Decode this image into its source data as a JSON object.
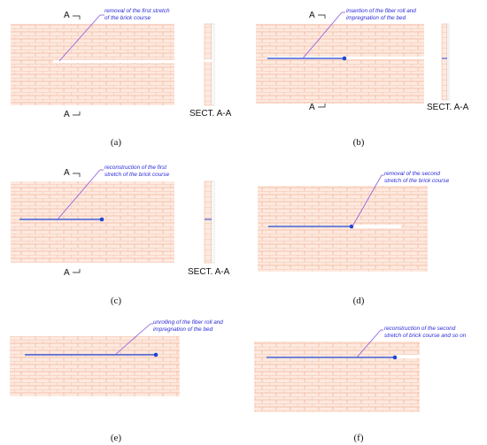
{
  "panels": [
    {
      "id": "a",
      "caption": "(a)",
      "note_lines": [
        "removal of the first stretch",
        "of the brick course"
      ],
      "has_fiber": false,
      "section_mark_top": "A",
      "section_mark_bottom": "A",
      "section_label": "SECT. A-A"
    },
    {
      "id": "b",
      "caption": "(b)",
      "note_lines": [
        "insertion of the fiber roll and",
        "impregnation of the bed"
      ],
      "has_fiber": true,
      "section_mark_top": "A",
      "section_mark_bottom": "A",
      "section_label": "SECT. A-A"
    },
    {
      "id": "c",
      "caption": "(c)",
      "note_lines": [
        "reconstruction of the first",
        "stretch of the brick course"
      ],
      "has_fiber": true,
      "section_mark_top": "A",
      "section_mark_bottom": "A",
      "section_label": "SECT. A-A"
    },
    {
      "id": "d",
      "caption": "(d)",
      "note_lines": [
        "removal of the second",
        "stretch of the brick course"
      ],
      "has_fiber": true
    },
    {
      "id": "e",
      "caption": "(e)",
      "note_lines": [
        "unrolling of the fiber roll and",
        "impregnation of the bed"
      ],
      "has_fiber": true
    },
    {
      "id": "f",
      "caption": "(f)",
      "note_lines": [
        "reconstruction of the second",
        "stretch of brick course and so on"
      ],
      "has_fiber": true
    }
  ],
  "colors": {
    "brick_fill": "#fde9df",
    "mortar": "#f0a98a",
    "annotation": "#2a2ad8",
    "fiber": "#1f45d6",
    "leader": "#8a58e0",
    "section_mark": "#111111"
  }
}
